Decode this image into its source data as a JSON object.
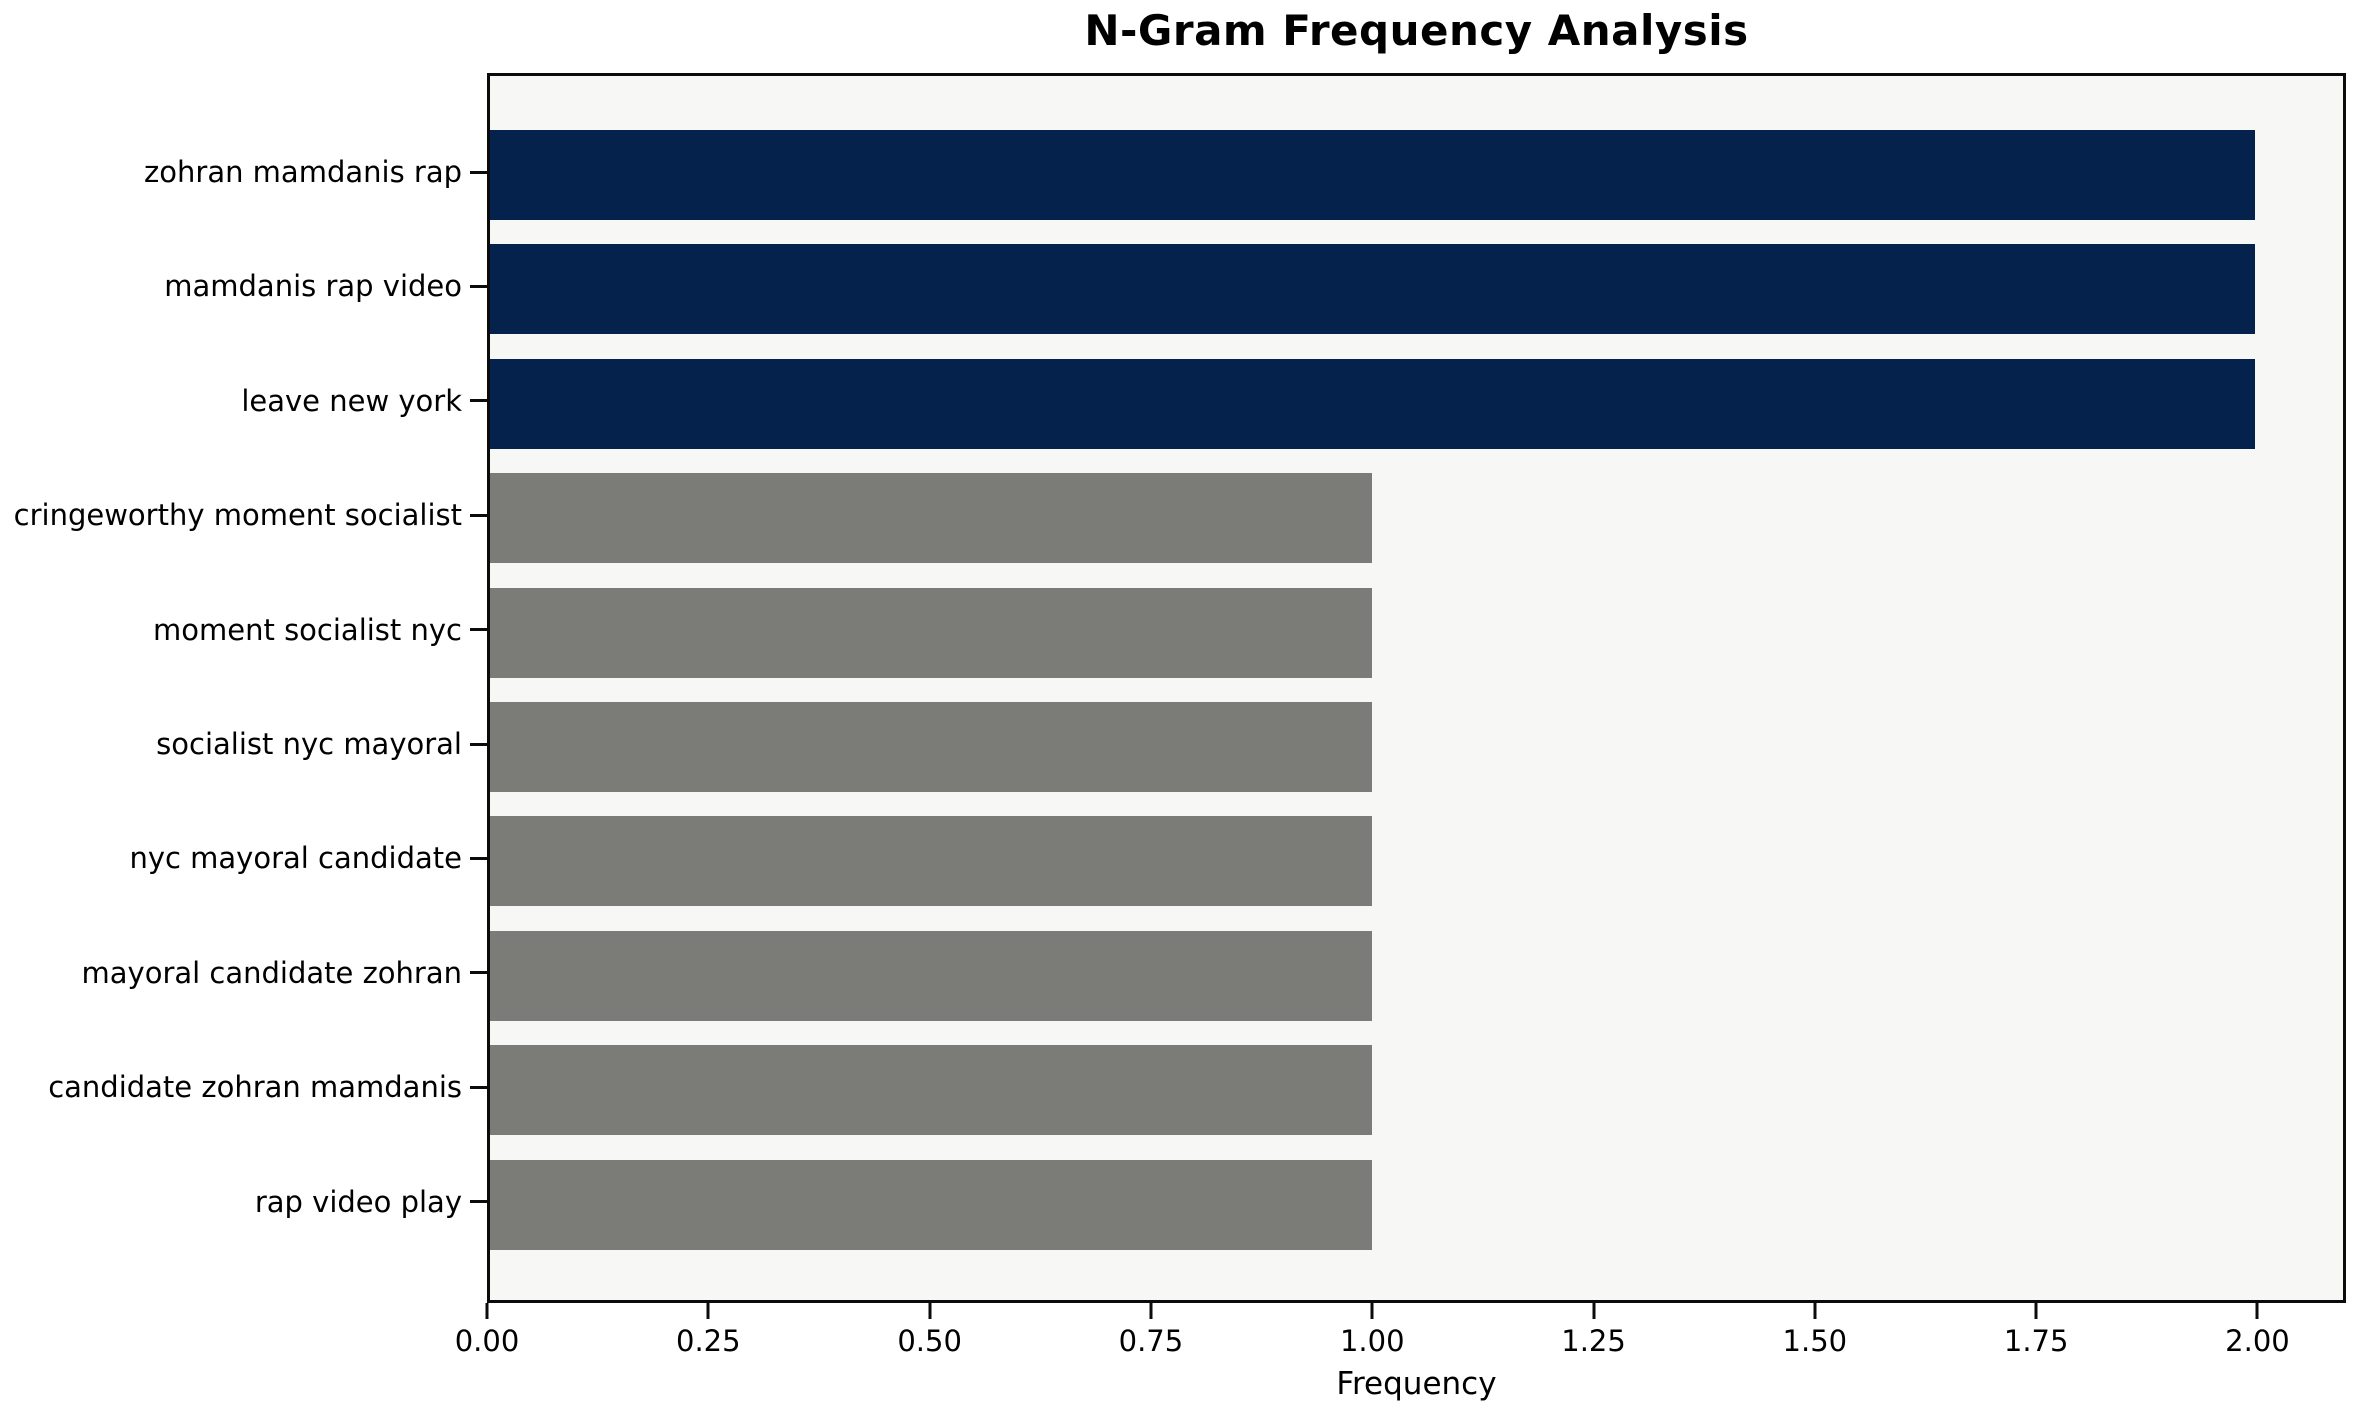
{
  "chart_data": {
    "type": "bar",
    "orientation": "horizontal",
    "title": "N-Gram Frequency Analysis",
    "xlabel": "Frequency",
    "ylabel": "",
    "categories": [
      "zohran mamdanis rap",
      "mamdanis rap video",
      "leave new york",
      "cringeworthy moment socialist",
      "moment socialist nyc",
      "socialist nyc mayoral",
      "nyc mayoral candidate",
      "mayoral candidate zohran",
      "candidate zohran mamdanis",
      "rap video play"
    ],
    "values": [
      2,
      2,
      2,
      1,
      1,
      1,
      1,
      1,
      1,
      1
    ],
    "bar_colors": [
      "#04224c",
      "#04224c",
      "#04224c",
      "#7b7b77",
      "#7b7b77",
      "#7b7b77",
      "#7b7b77",
      "#7b7b77",
      "#7b7b77",
      "#7b7b77"
    ],
    "xlim": [
      0,
      2.1
    ],
    "xticks": [
      0,
      0.25,
      0.5,
      0.75,
      1.0,
      1.25,
      1.5,
      1.75,
      2.0
    ],
    "xtick_labels": [
      "0.00",
      "0.25",
      "0.50",
      "0.75",
      "1.00",
      "1.25",
      "1.50",
      "1.75",
      "2.00"
    ],
    "grid": false,
    "legend": null,
    "colors": {
      "highlight_bar": "#04224c",
      "default_bar": "#7b7b77",
      "plot_background": "#f7f7f5",
      "figure_background": "#ffffff",
      "axis": "#0b0b0b",
      "text": "#000000"
    }
  }
}
